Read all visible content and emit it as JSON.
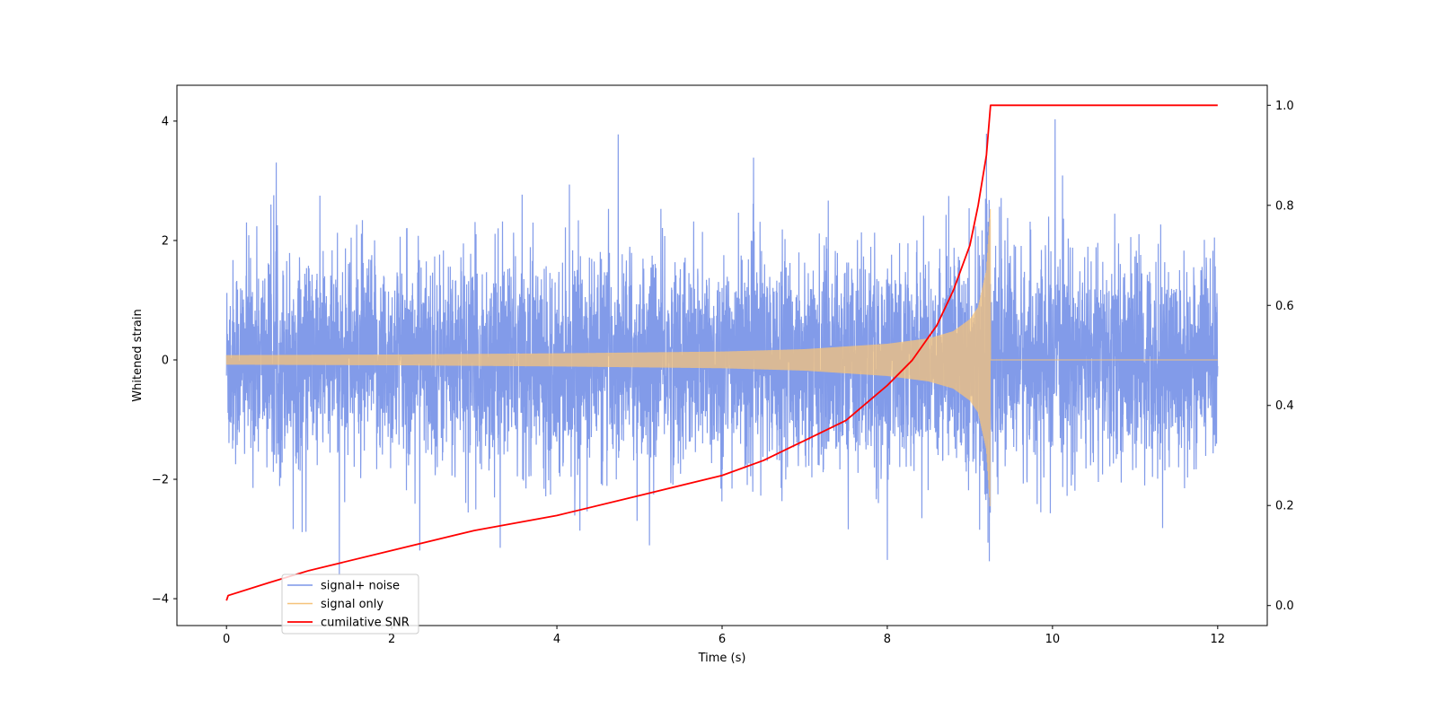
{
  "chart_data": {
    "type": "line",
    "title": "",
    "xlabel": "Time (s)",
    "ylabel": "Whitened strain",
    "y2label": "",
    "xlim": [
      -0.6,
      12.6
    ],
    "ylim": [
      -4.45,
      4.6
    ],
    "y2lim": [
      -0.04,
      1.04
    ],
    "xticks": [
      0,
      2,
      4,
      6,
      8,
      10,
      12
    ],
    "yticks": [
      -4,
      -2,
      0,
      2,
      4
    ],
    "y2ticks": [
      0.0,
      0.2,
      0.4,
      0.6,
      0.8,
      1.0
    ],
    "xtick_labels": [
      "0",
      "2",
      "4",
      "6",
      "8",
      "10",
      "12"
    ],
    "ytick_labels": [
      "−4",
      "−2",
      "0",
      "2",
      "4"
    ],
    "y2tick_labels": [
      "0.0",
      "0.2",
      "0.4",
      "0.6",
      "0.8",
      "1.0"
    ],
    "legend_position": "lower-left",
    "grid": false,
    "merger_time": 9.25,
    "series": [
      {
        "name": "signal+ noise",
        "color": "#7b96e8",
        "axis": "left",
        "description_values": {
          "noise_rms": 0.85,
          "peak_max": 4.17,
          "peak_min": -4.05
        }
      },
      {
        "name": "signal only",
        "color": "#f5c37a",
        "axis": "left",
        "amplitude_envelope": {
          "x": [
            0,
            2,
            4,
            6,
            7,
            8,
            8.5,
            8.8,
            9.0,
            9.1,
            9.2,
            9.25,
            9.26,
            12
          ],
          "y": [
            0.08,
            0.09,
            0.11,
            0.14,
            0.18,
            0.27,
            0.36,
            0.48,
            0.68,
            0.88,
            1.5,
            2.6,
            0,
            0
          ]
        }
      },
      {
        "name": "cumilative SNR",
        "color": "#ff0000",
        "axis": "right",
        "x": [
          0,
          0.02,
          0.5,
          1,
          2,
          3,
          4,
          5,
          6,
          6.5,
          7,
          7.5,
          8,
          8.3,
          8.6,
          8.8,
          9.0,
          9.1,
          9.2,
          9.25,
          9.27,
          12
        ],
        "y": [
          0.01,
          0.02,
          0.045,
          0.07,
          0.11,
          0.15,
          0.18,
          0.22,
          0.26,
          0.29,
          0.33,
          0.37,
          0.44,
          0.49,
          0.56,
          0.63,
          0.72,
          0.8,
          0.9,
          1.0,
          1.0,
          1.0
        ]
      }
    ]
  }
}
